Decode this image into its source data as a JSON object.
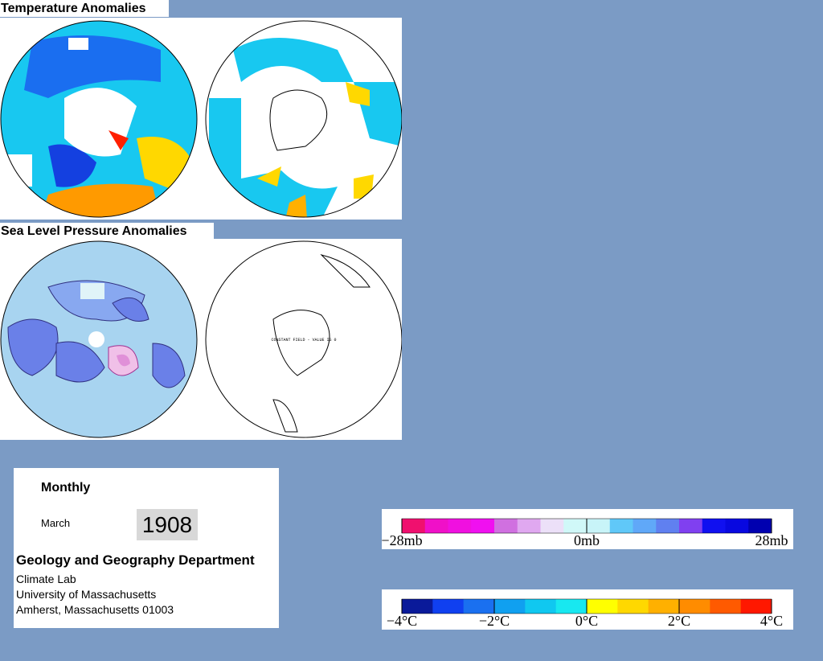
{
  "header": {
    "temperature_title": "Temperature Anomalies",
    "pressure_title": "Sea Level Pressure Anomalies"
  },
  "maps": {
    "constant_field_note": "CONSTANT FIELD - VALUE IS 0"
  },
  "info": {
    "period": "Monthly",
    "month": "March",
    "year": "1908",
    "department": "Geology and Geography Department",
    "lines": [
      "Climate Lab",
      "University of Massachusetts",
      "Amherst, Massachusetts 01003"
    ]
  },
  "pressure_scale": {
    "colors": [
      "#f0106e",
      "#f010c8",
      "#f010e0",
      "#f010f0",
      "#d070e0",
      "#e0a8f0",
      "#ece0f8",
      "#d0f8f8",
      "#c8f4f8",
      "#60c8f8",
      "#60a8f8",
      "#6080f0",
      "#8040f0",
      "#1010f0",
      "#0808e0",
      "#0000b0"
    ],
    "labels": [
      "−28mb",
      "0mb",
      "28mb"
    ]
  },
  "temperature_scale": {
    "colors": [
      "#0a1a9a",
      "#1040f0",
      "#1a70f0",
      "#10a0f0",
      "#10c8f0",
      "#18e8f0",
      "#ffff00",
      "#ffd800",
      "#ffb000",
      "#ff8c00",
      "#ff5a00",
      "#ff1800"
    ],
    "labels": [
      "−4°C",
      "−2°C",
      "0°C",
      "2°C",
      "4°C"
    ]
  }
}
